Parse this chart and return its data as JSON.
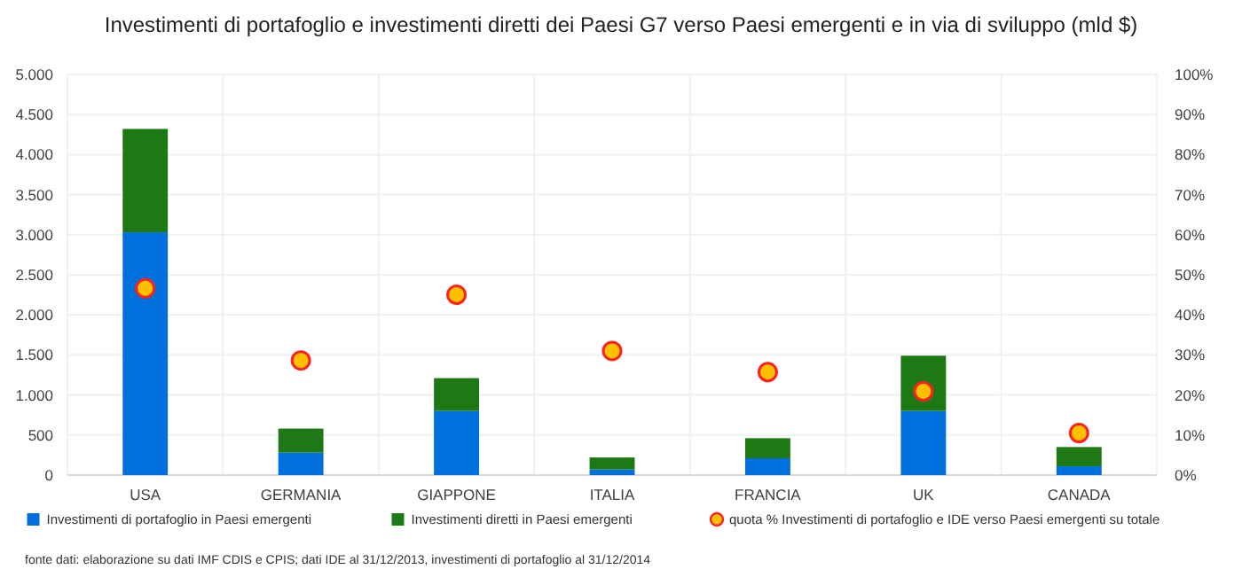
{
  "chart_data": {
    "type": "bar",
    "title": "Investimenti di portafoglio e investimenti diretti dei Paesi G7 verso Paesi emergenti e in via di sviluppo  (mld $)",
    "categories": [
      "USA",
      "GERMANIA",
      "GIAPPONE",
      "ITALIA",
      "FRANCIA",
      "UK",
      "CANADA"
    ],
    "stacked": true,
    "series": [
      {
        "name": "Investimenti di portafoglio in Paesi emergenti",
        "color": "#0070dc",
        "values": [
          3030,
          280,
          800,
          70,
          210,
          800,
          110
        ]
      },
      {
        "name": "Investimenti diretti in Paesi emergenti",
        "color": "#1e7814",
        "values": [
          1290,
          300,
          410,
          150,
          250,
          690,
          240
        ]
      },
      {
        "name": "quota % Investimenti di portafoglio e IDE verso Paesi emergenti su totale",
        "type": "scatter",
        "axis": "y2",
        "marker": "circle",
        "color": "#ffc000",
        "values": [
          46.6,
          28.6,
          45,
          31,
          25.7,
          20.9,
          10.5
        ]
      }
    ],
    "ylim": [
      0,
      5000
    ],
    "yticks": [
      {
        "value": 0,
        "label": "0"
      },
      {
        "value": 500,
        "label": "500"
      },
      {
        "value": 1000,
        "label": "1.000"
      },
      {
        "value": 1500,
        "label": "1.500"
      },
      {
        "value": 2000,
        "label": "2.000"
      },
      {
        "value": 2500,
        "label": "2.500"
      },
      {
        "value": 3000,
        "label": "3.000"
      },
      {
        "value": 3500,
        "label": "3.500"
      },
      {
        "value": 4000,
        "label": "4.000"
      },
      {
        "value": 4500,
        "label": "4.500"
      },
      {
        "value": 5000,
        "label": "5.000"
      }
    ],
    "y2lim": [
      0,
      100
    ],
    "y2ticks": [
      {
        "value": 0,
        "label": "0%"
      },
      {
        "value": 10,
        "label": "10%"
      },
      {
        "value": 20,
        "label": "20%"
      },
      {
        "value": 30,
        "label": "30%"
      },
      {
        "value": 40,
        "label": "40%"
      },
      {
        "value": 50,
        "label": "50%"
      },
      {
        "value": 60,
        "label": "60%"
      },
      {
        "value": 70,
        "label": "70%"
      },
      {
        "value": 80,
        "label": "80%"
      },
      {
        "value": 90,
        "label": "90%"
      },
      {
        "value": 100,
        "label": "100%"
      }
    ],
    "grid": true,
    "legend": "bottom",
    "annotations": [
      "fonte dati: elaborazione su dati IMF CDIS e CPIS; dati IDE al 31/12/2013,  investimenti di portafoglio al 31/12/2014"
    ]
  }
}
